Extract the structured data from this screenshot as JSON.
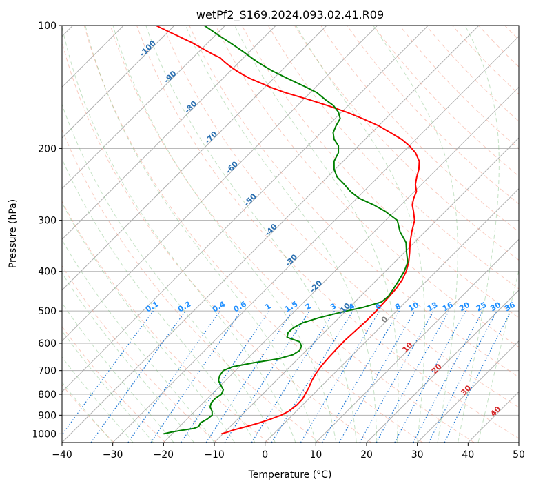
{
  "chart_data": {
    "type": "line",
    "title": "wetPf2_S169.2024.093.02.41.R09",
    "xlabel": "Temperature (°C)",
    "ylabel": "Pressure (hPa)",
    "xlim": [
      -40,
      50
    ],
    "ylim": [
      1050,
      100
    ],
    "y_scale": "log",
    "grid": true,
    "x_ticks": [
      -40,
      -30,
      -20,
      -10,
      0,
      10,
      20,
      30,
      40,
      50
    ],
    "y_ticks": [
      1000,
      900,
      800,
      700,
      600,
      500,
      400,
      300,
      200,
      100
    ],
    "skew_factor": 1,
    "series": [
      {
        "color": "#ff0000",
        "points": [
          [
            -10.3,
            1000
          ],
          [
            -9.5,
            990
          ],
          [
            -8.8,
            980
          ],
          [
            -6.8,
            960
          ],
          [
            -5.0,
            940
          ],
          [
            -3.5,
            920
          ],
          [
            -2.2,
            900
          ],
          [
            -1.5,
            880
          ],
          [
            -1.1,
            850
          ],
          [
            -1.2,
            820
          ],
          [
            -1.6,
            800
          ],
          [
            -2.2,
            770
          ],
          [
            -3.0,
            740
          ],
          [
            -3.6,
            710
          ],
          [
            -4.0,
            680
          ],
          [
            -4.2,
            650
          ],
          [
            -4.3,
            620
          ],
          [
            -4.4,
            590
          ],
          [
            -4.2,
            560
          ],
          [
            -4.0,
            530
          ],
          [
            -4.0,
            500
          ],
          [
            -4.2,
            470
          ],
          [
            -4.5,
            440
          ],
          [
            -5.0,
            420
          ],
          [
            -5.9,
            400
          ],
          [
            -7.2,
            380
          ],
          [
            -8.9,
            360
          ],
          [
            -10.8,
            340
          ],
          [
            -12.6,
            320
          ],
          [
            -14.3,
            300
          ],
          [
            -16.3,
            285
          ],
          [
            -17.8,
            275
          ],
          [
            -18.8,
            265
          ],
          [
            -19.6,
            255
          ],
          [
            -21.2,
            245
          ],
          [
            -22.4,
            235
          ],
          [
            -23.5,
            225
          ],
          [
            -25.0,
            215
          ],
          [
            -27.4,
            205
          ],
          [
            -30.0,
            197
          ],
          [
            -32.8,
            190
          ],
          [
            -36.3,
            183
          ],
          [
            -40.0,
            176
          ],
          [
            -44.6,
            169
          ],
          [
            -49.0,
            163
          ],
          [
            -54.1,
            157
          ],
          [
            -58.8,
            152
          ],
          [
            -64.9,
            146
          ],
          [
            -68.6,
            142
          ],
          [
            -71.9,
            138
          ],
          [
            -74.5,
            135
          ],
          [
            -76.8,
            132
          ],
          [
            -78.9,
            129
          ],
          [
            -80.9,
            126
          ],
          [
            -82.8,
            123
          ],
          [
            -84.6,
            120
          ],
          [
            -86.4,
            118
          ],
          [
            -88.1,
            116
          ],
          [
            -89.8,
            114
          ],
          [
            -91.5,
            112
          ],
          [
            -93.3,
            110
          ],
          [
            -95.3,
            108
          ],
          [
            -97.3,
            106
          ],
          [
            -99.4,
            104
          ],
          [
            -101.5,
            102
          ],
          [
            -103.6,
            100
          ]
        ]
      },
      {
        "color": "#008000",
        "points": [
          [
            -21.7,
            1000
          ],
          [
            -20.5,
            990
          ],
          [
            -18.8,
            980
          ],
          [
            -16.8,
            970
          ],
          [
            -16.2,
            960
          ],
          [
            -16.4,
            950
          ],
          [
            -16.6,
            940
          ],
          [
            -16.0,
            920
          ],
          [
            -15.8,
            900
          ],
          [
            -16.6,
            880
          ],
          [
            -17.8,
            860
          ],
          [
            -18.4,
            840
          ],
          [
            -18.5,
            820
          ],
          [
            -18.1,
            800
          ],
          [
            -18.6,
            780
          ],
          [
            -20.0,
            760
          ],
          [
            -21.4,
            740
          ],
          [
            -22.1,
            720
          ],
          [
            -22.4,
            700
          ],
          [
            -21.3,
            685
          ],
          [
            -18.0,
            670
          ],
          [
            -13.9,
            655
          ],
          [
            -11.8,
            640
          ],
          [
            -11.3,
            625
          ],
          [
            -11.8,
            610
          ],
          [
            -13.0,
            595
          ],
          [
            -16.4,
            580
          ],
          [
            -17.1,
            565
          ],
          [
            -17.0,
            550
          ],
          [
            -16.2,
            535
          ],
          [
            -14.0,
            520
          ],
          [
            -11.0,
            505
          ],
          [
            -7.3,
            490
          ],
          [
            -4.7,
            475
          ],
          [
            -4.5,
            460
          ],
          [
            -5.0,
            440
          ],
          [
            -5.6,
            420
          ],
          [
            -6.3,
            400
          ],
          [
            -7.4,
            380
          ],
          [
            -9.5,
            360
          ],
          [
            -11.6,
            340
          ],
          [
            -14.9,
            320
          ],
          [
            -17.7,
            300
          ],
          [
            -21.9,
            285
          ],
          [
            -25.4,
            275
          ],
          [
            -29.5,
            265
          ],
          [
            -32.6,
            255
          ],
          [
            -35.2,
            245
          ],
          [
            -38.1,
            235
          ],
          [
            -40.2,
            225
          ],
          [
            -41.8,
            215
          ],
          [
            -42.6,
            205
          ],
          [
            -44.0,
            197
          ],
          [
            -46.1,
            190
          ],
          [
            -47.6,
            183
          ],
          [
            -48.4,
            176
          ],
          [
            -49.0,
            169
          ],
          [
            -50.6,
            163
          ],
          [
            -52.9,
            157
          ],
          [
            -55.6,
            152
          ],
          [
            -58.7,
            146
          ],
          [
            -61.6,
            142
          ],
          [
            -64.7,
            138
          ],
          [
            -67.1,
            135
          ],
          [
            -69.5,
            132
          ],
          [
            -71.9,
            129
          ],
          [
            -74.1,
            126
          ],
          [
            -76.3,
            123
          ],
          [
            -78.4,
            120
          ],
          [
            -79.8,
            118
          ],
          [
            -81.2,
            116
          ],
          [
            -82.7,
            114
          ],
          [
            -84.2,
            112
          ],
          [
            -85.8,
            110
          ],
          [
            -87.4,
            108
          ],
          [
            -89.1,
            106
          ],
          [
            -90.7,
            104
          ],
          [
            -92.4,
            102
          ],
          [
            -94.1,
            100
          ]
        ]
      }
    ],
    "dry_adiabat_labels": [
      {
        "text": "-100",
        "T": -100,
        "p": 115
      },
      {
        "text": "-90",
        "T": -90,
        "p": 135
      },
      {
        "text": "-80",
        "T": -80,
        "p": 160
      },
      {
        "text": "-70",
        "T": -70,
        "p": 190
      },
      {
        "text": "-60",
        "T": -60,
        "p": 225
      },
      {
        "text": "-50",
        "T": -50,
        "p": 270
      },
      {
        "text": "-40",
        "T": -40,
        "p": 320
      },
      {
        "text": "-30",
        "T": -30,
        "p": 380
      },
      {
        "text": "-20",
        "T": -20,
        "p": 440
      },
      {
        "text": "-10",
        "T": -10,
        "p": 500
      }
    ],
    "moist_adiabat_labels": [
      {
        "text": "0",
        "T": 0,
        "p": 530
      },
      {
        "text": "10",
        "T": 10,
        "p": 620
      },
      {
        "text": "20",
        "T": 20,
        "p": 700
      },
      {
        "text": "30",
        "T": 30,
        "p": 790
      },
      {
        "text": "40",
        "T": 40,
        "p": 890
      }
    ],
    "mixing_ratio_labels": [
      "0.1",
      "0.2",
      "0.4",
      "0.6",
      "1",
      "1.5",
      "2",
      "3",
      "4",
      "6",
      "8",
      "10",
      "13",
      "16",
      "20",
      "25",
      "30",
      "36"
    ]
  }
}
